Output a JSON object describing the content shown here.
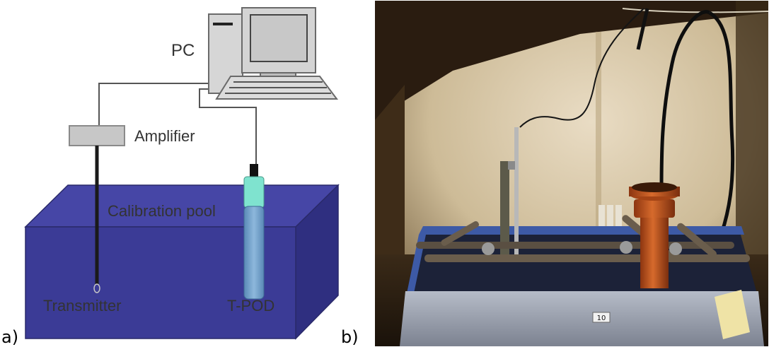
{
  "panel_a": {
    "panel_label": "a)",
    "labels": {
      "pc": "PC",
      "amplifier": "Amplifier",
      "pool": "Calibration pool",
      "transmitter": "Transmitter",
      "tpod": "T-POD"
    }
  },
  "panel_b": {
    "panel_label": "b)",
    "tag": "10"
  },
  "colors": {
    "pool_front": "#3b3b96",
    "pool_top": "#4646a6",
    "pool_side": "#2f2f80",
    "tpod_cap": "#7fe3cf",
    "tpod_body": "#6f9ec8",
    "pipe_orange": "#c8571c"
  }
}
